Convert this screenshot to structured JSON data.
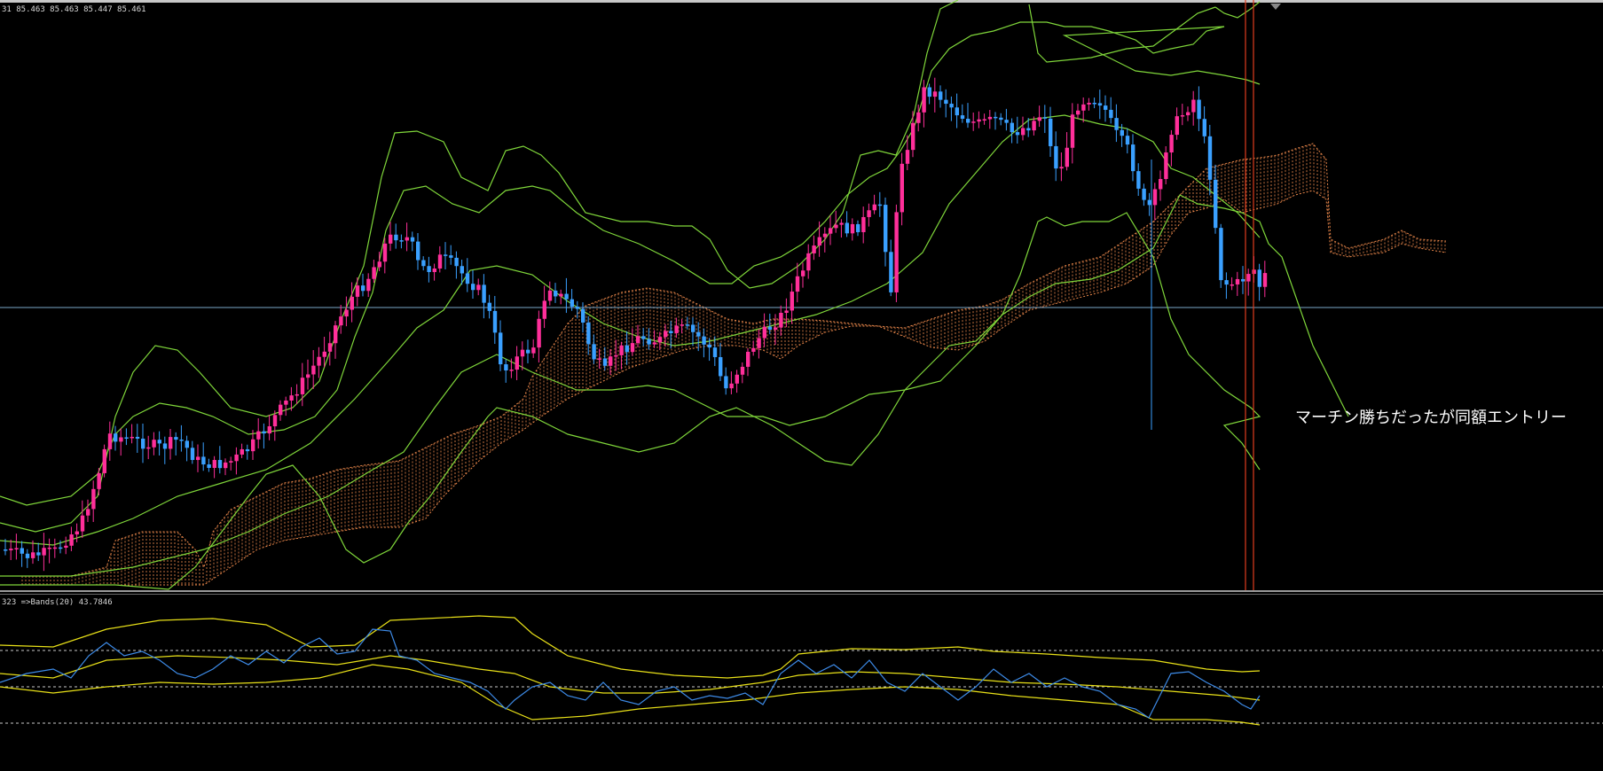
{
  "header": {
    "ohlc_text": "31  85.463 85.463 85.447 85.461"
  },
  "main_chart": {
    "annotation": "マーチン勝ちだったが同額エントリー",
    "colors": {
      "bull_candle": "#ff2f9a",
      "bear_candle": "#3aa0ff",
      "bands": "#7fd63a",
      "kumo": "#e8864a",
      "hline": "#7aa7c8",
      "vline": "#e03c1e"
    }
  },
  "sub_window": {
    "label": "323  =>Bands(20) 43.7846",
    "colors": {
      "rsi_line": "#3d8be8",
      "bands": "#e8e018",
      "levels": "#c8c8c8"
    }
  }
}
